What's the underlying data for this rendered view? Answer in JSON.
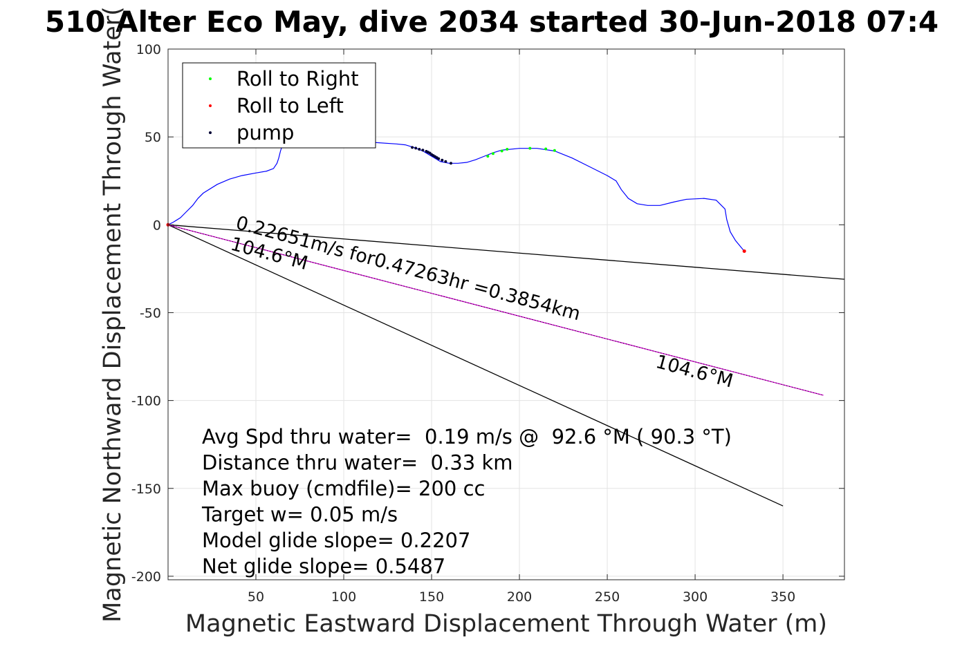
{
  "chart_data": {
    "type": "line",
    "title": "510 Alter Eco May, dive 2034 started 30-Jun-2018 07:4",
    "xlabel": "Magnetic Eastward Displacement Through Water (m)",
    "ylabel": "Magnetic Northward Displacement Through Water(",
    "xlim": [
      0,
      385
    ],
    "ylim": [
      -202,
      100
    ],
    "xticks": [
      50,
      100,
      150,
      200,
      250,
      300,
      350
    ],
    "yticks": [
      100,
      50,
      0,
      -50,
      -100,
      -150,
      -200
    ],
    "grid": true,
    "legend": {
      "placement": "top-left",
      "entries": [
        {
          "label": "Roll to Right",
          "color": "#00ff00"
        },
        {
          "label": "Roll to Left",
          "color": "#ff0000"
        },
        {
          "label": "pump",
          "color": "#000033"
        }
      ]
    },
    "track": {
      "name": "track",
      "color": "#0000ff",
      "points": [
        [
          0,
          0
        ],
        [
          3,
          1.5
        ],
        [
          7,
          4
        ],
        [
          10,
          7
        ],
        [
          14,
          11
        ],
        [
          17,
          15
        ],
        [
          20,
          18
        ],
        [
          28,
          23
        ],
        [
          35,
          26
        ],
        [
          42,
          28
        ],
        [
          50,
          29.5
        ],
        [
          56,
          30.5
        ],
        [
          60,
          32
        ],
        [
          62,
          35
        ],
        [
          63,
          38
        ],
        [
          64,
          42
        ],
        [
          65,
          45
        ],
        [
          66,
          48
        ],
        [
          68,
          49
        ],
        [
          75,
          49.5
        ],
        [
          85,
          49
        ],
        [
          100,
          48.5
        ],
        [
          115,
          47
        ],
        [
          130,
          46
        ],
        [
          135,
          45.5
        ],
        [
          140,
          44
        ],
        [
          145,
          42
        ],
        [
          150,
          39
        ],
        [
          155,
          36
        ],
        [
          160,
          35
        ],
        [
          165,
          35
        ],
        [
          170,
          35.5
        ],
        [
          175,
          37
        ],
        [
          180,
          39
        ],
        [
          185,
          41
        ],
        [
          190,
          42.5
        ],
        [
          200,
          43.5
        ],
        [
          210,
          43.5
        ],
        [
          220,
          42
        ],
        [
          230,
          38
        ],
        [
          240,
          33
        ],
        [
          250,
          28
        ],
        [
          255,
          25
        ],
        [
          258,
          20
        ],
        [
          262,
          15
        ],
        [
          267,
          12
        ],
        [
          273,
          11
        ],
        [
          280,
          11
        ],
        [
          288,
          13
        ],
        [
          295,
          14.5
        ],
        [
          305,
          15
        ],
        [
          312,
          14
        ],
        [
          317,
          9
        ],
        [
          318,
          3
        ],
        [
          320,
          -4
        ],
        [
          323,
          -9
        ],
        [
          328,
          -15
        ]
      ]
    },
    "roll_right": [
      [
        182,
        39
      ],
      [
        185,
        40.5
      ],
      [
        190,
        42
      ],
      [
        193,
        43
      ],
      [
        206,
        43.5
      ],
      [
        215,
        43.2
      ],
      [
        220,
        42.3
      ]
    ],
    "roll_left": [
      [
        0,
        0
      ],
      [
        328,
        -15
      ]
    ],
    "pump": [
      [
        139,
        44
      ],
      [
        141,
        43.6
      ],
      [
        143,
        43
      ],
      [
        145,
        42.5
      ],
      [
        147,
        41.8
      ],
      [
        148,
        41.3
      ],
      [
        149,
        40.8
      ],
      [
        150,
        40
      ],
      [
        151,
        39.4
      ],
      [
        152,
        38.8
      ],
      [
        153,
        38.2
      ],
      [
        154,
        37.6
      ],
      [
        156,
        36.8
      ],
      [
        158,
        36
      ],
      [
        161,
        35
      ]
    ],
    "reference_lines": [
      {
        "name": "heading-line-upper",
        "color": "#000000",
        "points": [
          [
            0,
            0
          ],
          [
            385,
            -31
          ]
        ]
      },
      {
        "name": "heading-line-lower",
        "color": "#000000",
        "points": [
          [
            0,
            0
          ],
          [
            350,
            -160
          ]
        ]
      },
      {
        "name": "net-displacement-line",
        "color": "#cc00cc",
        "points": [
          [
            0,
            0
          ],
          [
            373,
            -97
          ]
        ]
      }
    ],
    "annotations": [
      {
        "text": "0.22651m/s for0.47263hr =0.3854km",
        "at": [
          38,
          -2
        ],
        "angle": 15
      },
      {
        "text": "104.6°M",
        "at": [
          35,
          -14
        ],
        "angle": 15
      },
      {
        "text": "104.6°M",
        "at": [
          277,
          -81
        ],
        "angle": 15
      }
    ],
    "stats": [
      "Avg Spd thru water=  0.19 m/s @  92.6 °M ( 90.3 °T)",
      "Distance thru water=  0.33 km",
      "Max buoy (cmdfile)= 200 cc",
      "Target w= 0.05 m/s",
      "Model glide slope= 0.2207",
      "Net glide slope= 0.5487"
    ]
  }
}
